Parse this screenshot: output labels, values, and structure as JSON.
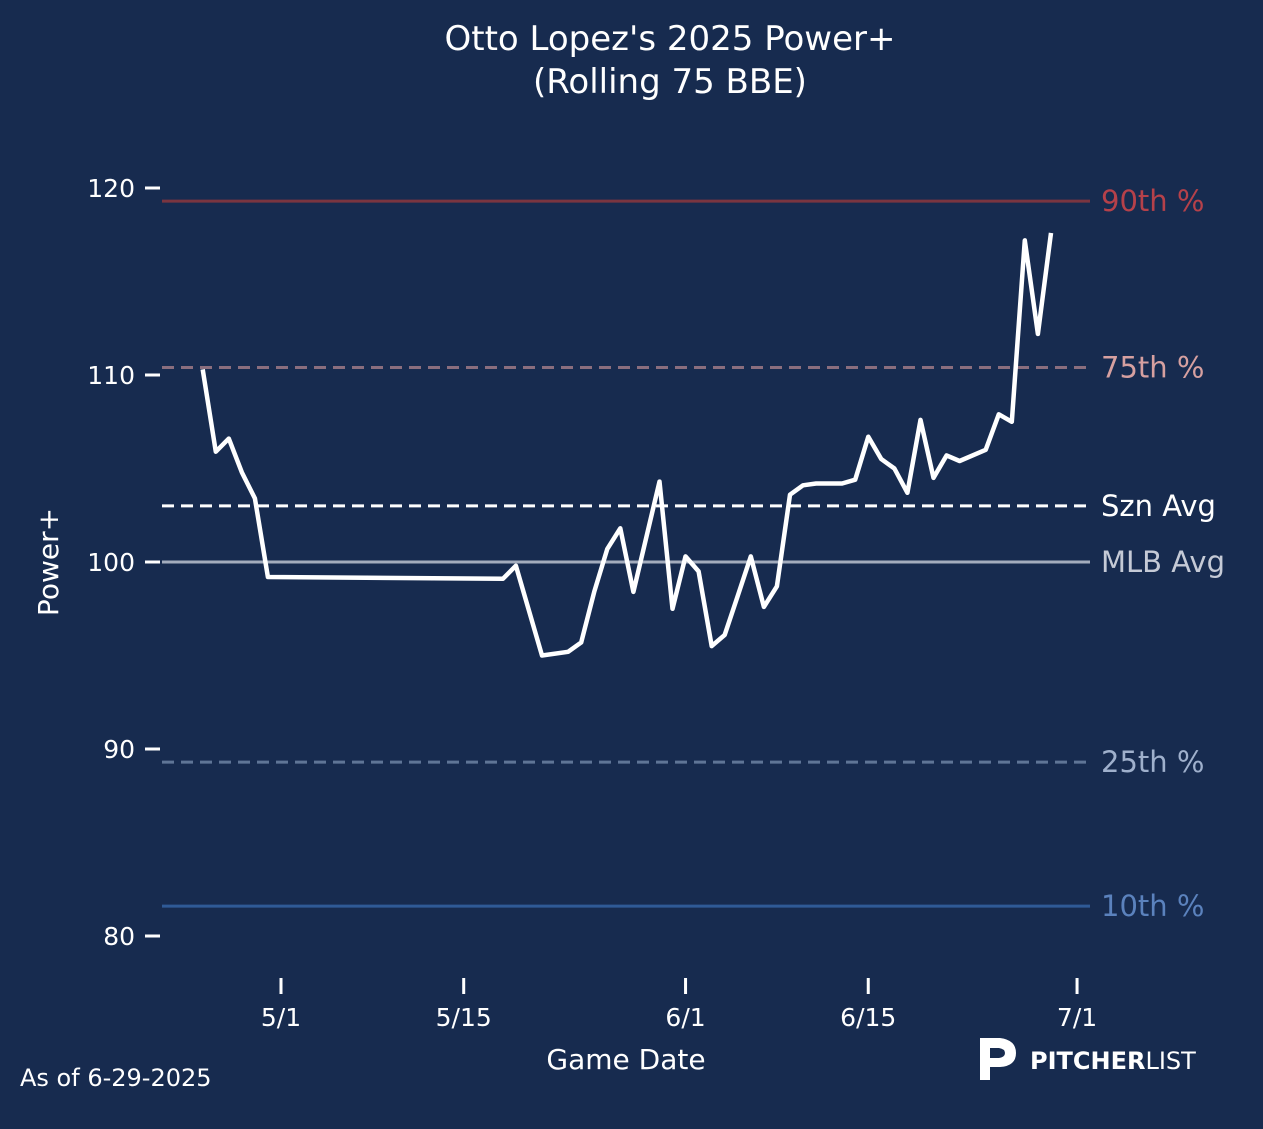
{
  "chart_data": {
    "type": "line",
    "title": "Otto Lopez's 2025 Power+",
    "subtitle": "(Rolling 75 BBE)",
    "xlabel": "Game Date",
    "ylabel": "Power+",
    "ylim": [
      77.5,
      122.5
    ],
    "yticks": [
      80,
      90,
      100,
      110,
      120
    ],
    "xticks": [
      "5/1",
      "5/15",
      "6/1",
      "6/15",
      "7/1"
    ],
    "grid": false,
    "series": [
      {
        "name": "Power+ (Rolling 75 BBE)",
        "color": "#ffffff",
        "x": [
          "4/25",
          "4/26",
          "4/27",
          "4/28",
          "4/29",
          "4/30",
          "5/18",
          "5/19",
          "5/21",
          "5/23",
          "5/24",
          "5/25",
          "5/26",
          "5/27",
          "5/28",
          "5/30",
          "5/31",
          "6/1",
          "6/2",
          "6/3",
          "6/4",
          "6/5",
          "6/6",
          "6/7",
          "6/8",
          "6/9",
          "6/10",
          "6/11",
          "6/13",
          "6/14",
          "6/15",
          "6/16",
          "6/17",
          "6/18",
          "6/19",
          "6/20",
          "6/21",
          "6/22",
          "6/24",
          "6/25",
          "6/26",
          "6/27",
          "6/28",
          "6/29"
        ],
        "values": [
          110.3,
          105.9,
          106.6,
          104.8,
          103.4,
          99.2,
          99.1,
          99.8,
          95.0,
          95.2,
          95.7,
          98.4,
          100.7,
          101.8,
          98.4,
          104.3,
          97.5,
          100.3,
          99.5,
          95.5,
          96.1,
          98.2,
          100.3,
          97.6,
          98.7,
          103.6,
          104.1,
          104.2,
          104.2,
          104.4,
          106.7,
          105.5,
          105.0,
          103.7,
          107.6,
          104.5,
          105.7,
          105.4,
          106.0,
          107.9,
          107.5,
          117.2,
          112.2,
          117.6
        ]
      }
    ],
    "reference_lines": [
      {
        "label": "90th %",
        "value": 119.3,
        "style": "solid",
        "line_color": "#7a3540",
        "text_color": "#b5414a"
      },
      {
        "label": "75th %",
        "value": 110.4,
        "style": "dashed",
        "line_color": "#8a6e7e",
        "text_color": "#d6a0a0"
      },
      {
        "label": "Szn Avg",
        "value": 103.0,
        "style": "dashed",
        "line_color": "#ffffff",
        "text_color": "#ffffff"
      },
      {
        "label": "MLB Avg",
        "value": 100.0,
        "style": "solid",
        "line_color": "#a3acbd",
        "text_color": "#c5cad6"
      },
      {
        "label": "25th %",
        "value": 89.3,
        "style": "dashed",
        "line_color": "#5f7596",
        "text_color": "#9fb0cc"
      },
      {
        "label": "10th %",
        "value": 81.6,
        "style": "solid",
        "line_color": "#2f5a96",
        "text_color": "#5b82bd"
      }
    ]
  },
  "footer": {
    "as_of": "As of 6-29-2025",
    "logo_bold": "PITCHER",
    "logo_light": "LIST"
  }
}
